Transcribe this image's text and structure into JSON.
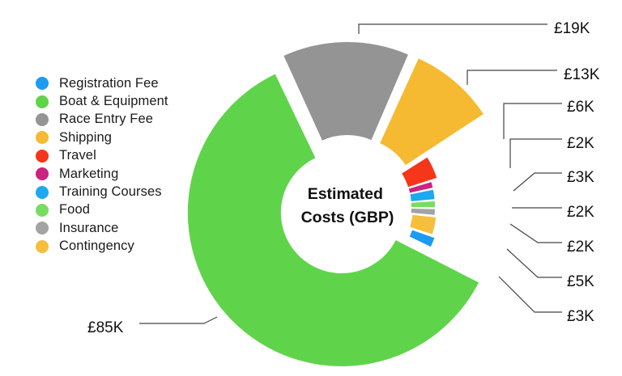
{
  "chart_data": {
    "type": "pie",
    "variant": "donut",
    "title": "Estimated Costs (GBP)",
    "unit": "GBP",
    "legend_position": "left",
    "slices": [
      {
        "name": "Registration Fee",
        "value": 3000,
        "label": "£3K",
        "color": "#1c9bf0"
      },
      {
        "name": "Boat & Equipment",
        "value": 85000,
        "label": "£85K",
        "color": "#5fd44a"
      },
      {
        "name": "Race Entry Fee",
        "value": 19000,
        "label": "£19K",
        "color": "#949494"
      },
      {
        "name": "Shipping",
        "value": 13000,
        "label": "£13K",
        "color": "#f5ba31"
      },
      {
        "name": "Travel",
        "value": 6000,
        "label": "£6K",
        "color": "#f5361b"
      },
      {
        "name": "Marketing",
        "value": 2000,
        "label": "£2K",
        "color": "#cc2280"
      },
      {
        "name": "Training Courses",
        "value": 3000,
        "label": "£3K",
        "color": "#1ea8f0"
      },
      {
        "name": "Food",
        "value": 2000,
        "label": "£2K",
        "color": "#79dc62"
      },
      {
        "name": "Insurance",
        "value": 2000,
        "label": "£2K",
        "color": "#a3a3a3"
      },
      {
        "name": "Contingency",
        "value": 5000,
        "label": "£5K",
        "color": "#f5be3c"
      }
    ]
  }
}
